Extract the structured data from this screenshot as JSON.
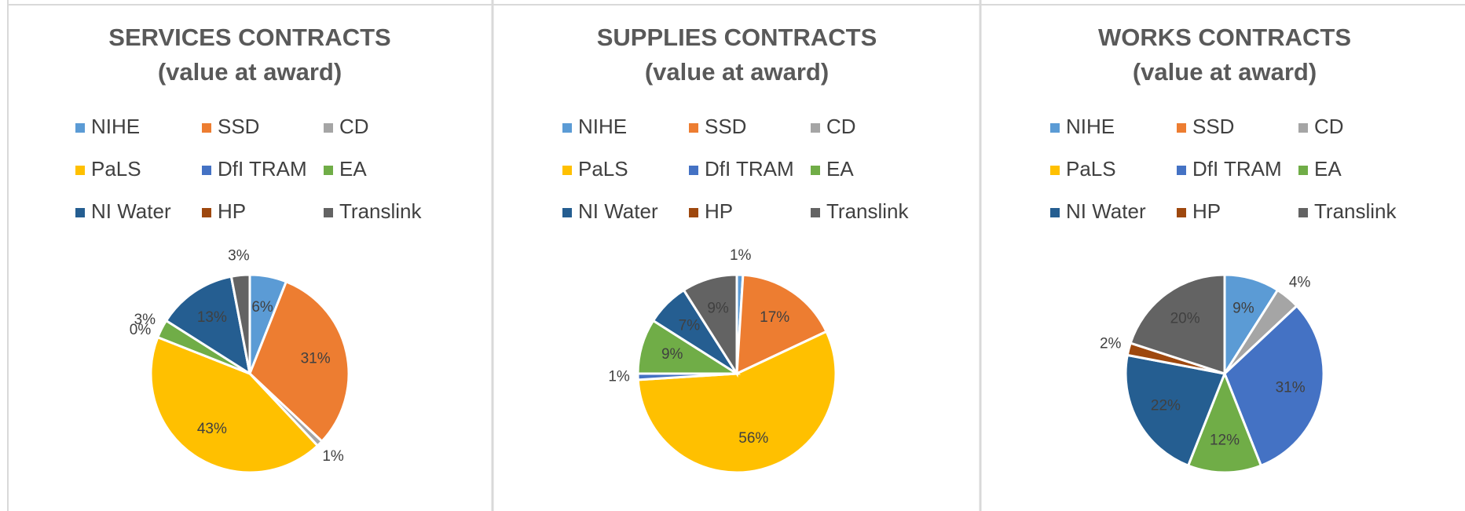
{
  "chart_data": [
    {
      "type": "pie",
      "title": "SERVICES CONTRACTS",
      "subtitle": "(value at award)",
      "categories": [
        "NIHE",
        "SSD",
        "CD",
        "PaLS",
        "DfI TRAM",
        "EA",
        "NI Water",
        "HP",
        "Translink"
      ],
      "colors": [
        "#5b9bd5",
        "#ed7d31",
        "#a5a5a5",
        "#ffc000",
        "#4472c4",
        "#70ad47",
        "#255e91",
        "#9e480e",
        "#636363"
      ],
      "values": [
        6,
        31,
        1,
        43,
        0,
        3,
        13,
        0,
        3
      ],
      "value_labels": [
        "6%",
        "31%",
        "1%",
        "43%",
        "0%",
        "3%",
        "13%",
        null,
        "3%"
      ]
    },
    {
      "type": "pie",
      "title": "SUPPLIES CONTRACTS",
      "subtitle": "(value at award)",
      "categories": [
        "NIHE",
        "SSD",
        "CD",
        "PaLS",
        "DfI TRAM",
        "EA",
        "NI Water",
        "HP",
        "Translink"
      ],
      "colors": [
        "#5b9bd5",
        "#ed7d31",
        "#a5a5a5",
        "#ffc000",
        "#4472c4",
        "#70ad47",
        "#255e91",
        "#9e480e",
        "#636363"
      ],
      "values": [
        1,
        17,
        0,
        56,
        1,
        9,
        7,
        0,
        9
      ],
      "value_labels": [
        "1%",
        "17%",
        null,
        "56%",
        "1%",
        "9%",
        "7%",
        null,
        "9%"
      ]
    },
    {
      "type": "pie",
      "title": "WORKS CONTRACTS",
      "subtitle": "(value at award)",
      "categories": [
        "NIHE",
        "SSD",
        "CD",
        "PaLS",
        "DfI TRAM",
        "EA",
        "NI Water",
        "HP",
        "Translink"
      ],
      "colors": [
        "#5b9bd5",
        "#ed7d31",
        "#a5a5a5",
        "#ffc000",
        "#4472c4",
        "#70ad47",
        "#255e91",
        "#9e480e",
        "#636363"
      ],
      "values": [
        9,
        0,
        4,
        0,
        31,
        12,
        22,
        2,
        20
      ],
      "value_labels": [
        "9%",
        null,
        "4%",
        null,
        "31%",
        "12%",
        "22%",
        "2%",
        "20%"
      ]
    }
  ]
}
